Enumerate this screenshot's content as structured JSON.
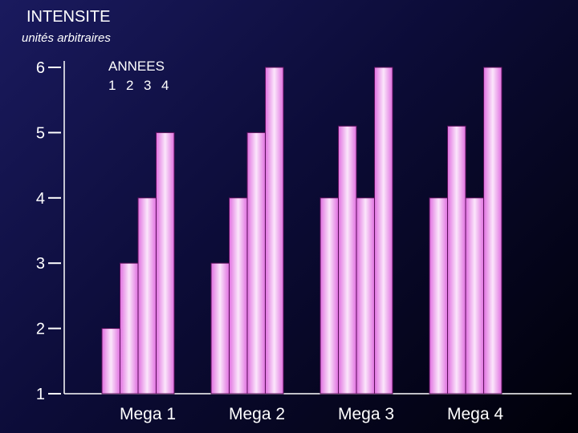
{
  "chart_data": {
    "type": "bar",
    "ylabel": "INTENSITE",
    "yunit": "unités arbitraires",
    "ylim": [
      1,
      6
    ],
    "yticks": [
      1,
      2,
      3,
      4,
      5,
      6
    ],
    "legend_title": "ANNEES",
    "legend_labels": [
      "1",
      "2",
      "3",
      "4"
    ],
    "legend_placement": "top-left",
    "categories": [
      "Mega 1",
      "Mega 2",
      "Mega 3",
      "Mega 4"
    ],
    "series": [
      {
        "name": "1",
        "values": [
          2,
          3,
          4,
          4
        ]
      },
      {
        "name": "2",
        "values": [
          3,
          4,
          5.1,
          5.1
        ]
      },
      {
        "name": "3",
        "values": [
          4,
          5,
          4,
          4
        ]
      },
      {
        "name": "4",
        "values": [
          5,
          6,
          6,
          6
        ]
      }
    ],
    "grid": false,
    "colors": {
      "bar_edge": "#f080f0",
      "bar_center": "#fbe6fb",
      "bar_outline": "#5a105a",
      "axis": "#ffffff"
    }
  }
}
